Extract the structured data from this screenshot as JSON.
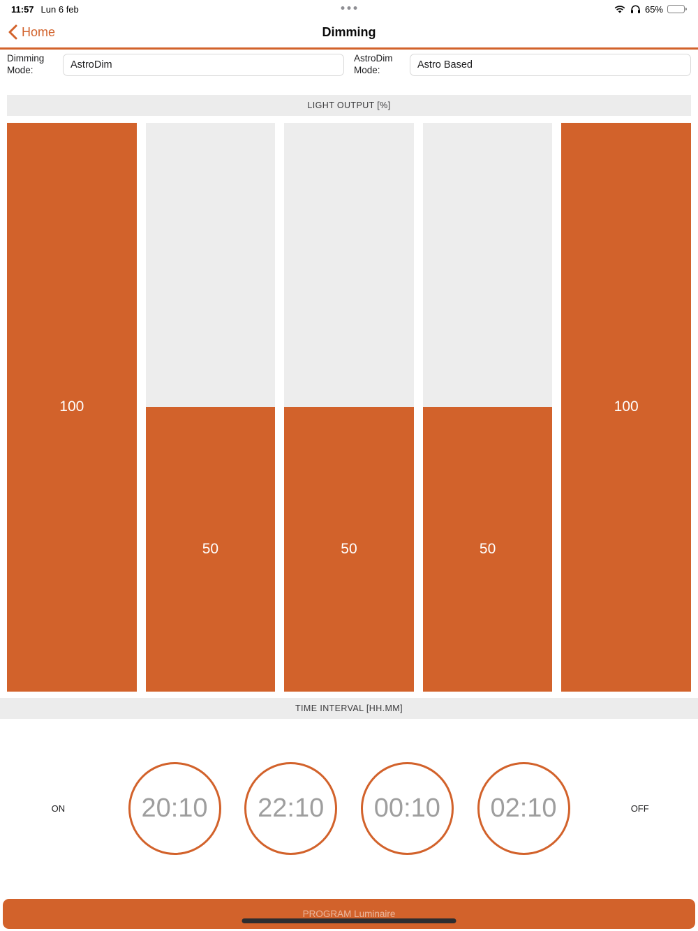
{
  "status_bar": {
    "time": "11:57",
    "date": "Lun 6 feb",
    "battery": "65%"
  },
  "nav": {
    "back": "Home",
    "title": "Dimming"
  },
  "form": {
    "fields": [
      {
        "label": "Dimming Mode:",
        "value": "AstroDim"
      },
      {
        "label": "AstroDim Mode:",
        "value": "Astro Based"
      }
    ]
  },
  "chart_data": {
    "type": "bar",
    "title": "LIGHT OUTPUT [%]",
    "values": [
      100,
      50,
      50,
      50,
      100
    ],
    "bar_labels": [
      "100",
      "50",
      "50",
      "50",
      "100"
    ],
    "ylim": [
      0,
      100
    ],
    "grid": false,
    "legend": "none"
  },
  "time_interval": {
    "title": "TIME INTERVAL [HH.MM]",
    "on_label": "ON",
    "off_label": "OFF",
    "times": [
      "20:10",
      "22:10",
      "00:10",
      "02:10"
    ]
  },
  "program_button_label": "PROGRAM Luminaire",
  "colors": {
    "accent": "#D2622B",
    "bar_track": "#EDEDED",
    "band_bg": "#ECECEC",
    "time_text": "#9E9E9E"
  }
}
